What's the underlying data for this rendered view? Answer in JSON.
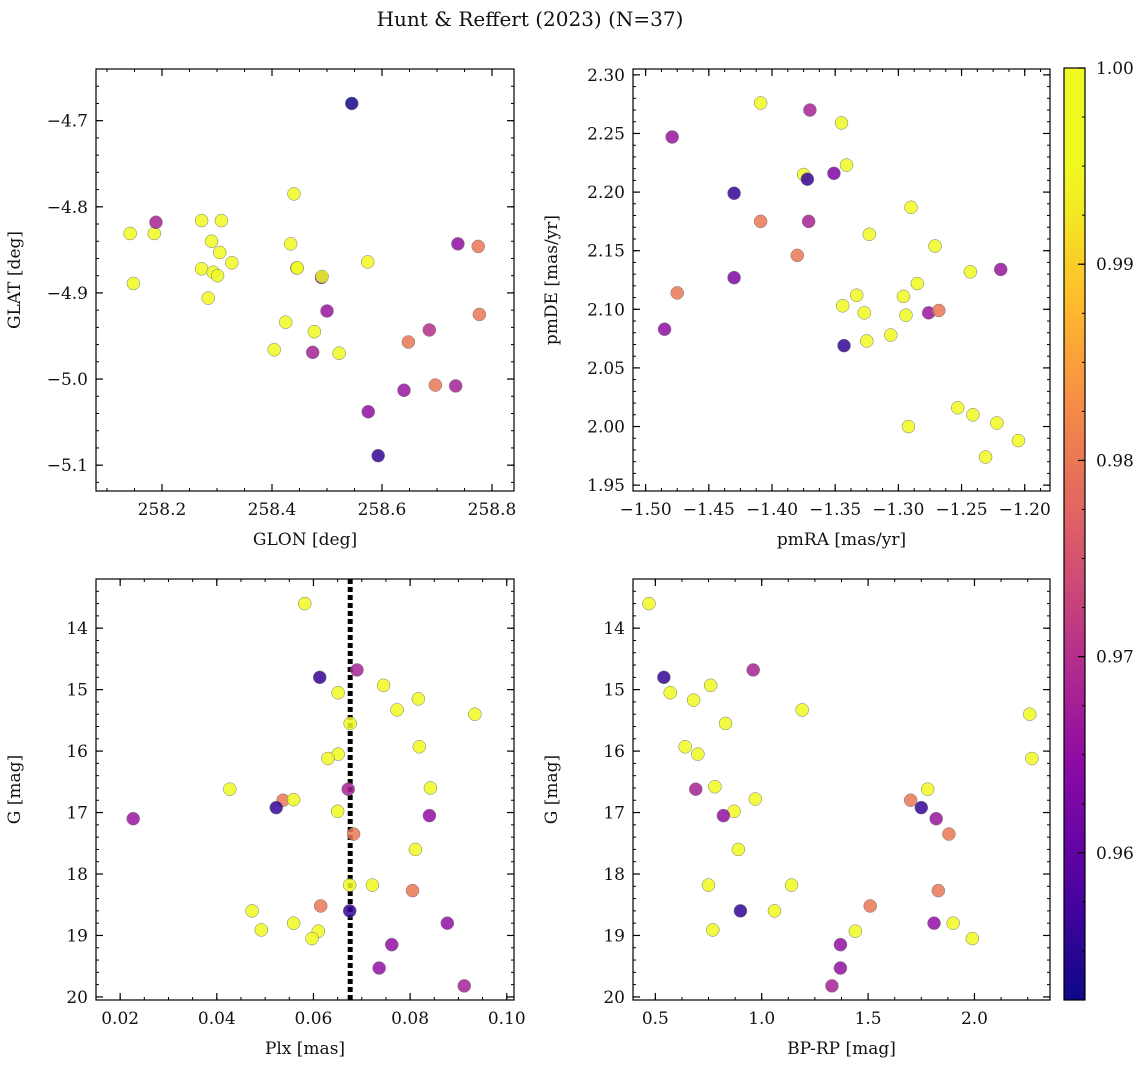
{
  "figure": {
    "title": "Hunt & Reffert (2023) (N=37)"
  },
  "colorbar": {
    "colormap": "plasma",
    "range": [
      0.9525,
      1.0
    ],
    "ticks": [
      0.96,
      0.97,
      0.98,
      0.99,
      1.0
    ],
    "tick_labels": [
      "0.96",
      "0.97",
      "0.98",
      "0.99",
      "1.00"
    ]
  },
  "chart_data": [
    {
      "type": "scatter",
      "title": "",
      "xlabel": "GLON [deg]",
      "ylabel": "GLAT [deg]",
      "xlim": [
        258.08,
        258.84
      ],
      "ylim": [
        -5.13,
        -4.64
      ],
      "xticks": [
        258.2,
        258.4,
        258.6,
        258.8
      ],
      "xtick_labels": [
        "258.2",
        "258.4",
        "258.6",
        "258.8"
      ],
      "yticks": [
        -4.7,
        -4.8,
        -4.9,
        -5.0,
        -5.1
      ],
      "ytick_labels": [
        "−4.7",
        "−4.8",
        "−4.9",
        "−5.0",
        "−5.1"
      ],
      "invert_y": false,
      "points": [
        [
          258.545,
          -4.68,
          0.953
        ],
        [
          258.142,
          -4.831,
          1.0
        ],
        [
          258.186,
          -4.831,
          1.0
        ],
        [
          258.189,
          -4.818,
          0.968
        ],
        [
          258.148,
          -4.889,
          1.0
        ],
        [
          258.272,
          -4.816,
          1.0
        ],
        [
          258.308,
          -4.816,
          1.0
        ],
        [
          258.29,
          -4.84,
          1.0
        ],
        [
          258.305,
          -4.853,
          1.0
        ],
        [
          258.327,
          -4.865,
          1.0
        ],
        [
          258.272,
          -4.872,
          1.0
        ],
        [
          258.293,
          -4.876,
          1.0
        ],
        [
          258.301,
          -4.88,
          1.0
        ],
        [
          258.284,
          -4.906,
          1.0
        ],
        [
          258.44,
          -4.785,
          1.0
        ],
        [
          258.434,
          -4.843,
          1.0
        ],
        [
          258.445,
          -4.871,
          1.0
        ],
        [
          258.446,
          -4.871,
          1.0
        ],
        [
          258.49,
          -4.882,
          0.96
        ],
        [
          258.491,
          -4.881,
          1.0
        ],
        [
          258.574,
          -4.864,
          1.0
        ],
        [
          258.425,
          -4.934,
          1.0
        ],
        [
          258.404,
          -4.966,
          1.0
        ],
        [
          258.477,
          -4.945,
          1.0
        ],
        [
          258.474,
          -4.969,
          0.968
        ],
        [
          258.5,
          -4.921,
          0.966
        ],
        [
          258.522,
          -4.97,
          1.0
        ],
        [
          258.648,
          -4.957,
          0.98
        ],
        [
          258.686,
          -4.943,
          0.97
        ],
        [
          258.697,
          -5.007,
          0.98
        ],
        [
          258.734,
          -5.008,
          0.968
        ],
        [
          258.738,
          -4.843,
          0.965
        ],
        [
          258.775,
          -4.846,
          0.98
        ],
        [
          258.777,
          -4.925,
          0.98
        ],
        [
          258.64,
          -5.013,
          0.966
        ],
        [
          258.575,
          -5.038,
          0.965
        ],
        [
          258.593,
          -5.089,
          0.956
        ]
      ]
    },
    {
      "type": "scatter",
      "title": "",
      "xlabel": "pmRA [mas/yr]",
      "ylabel": "pmDE [mas/yr]",
      "xlim": [
        -1.51,
        -1.18
      ],
      "ylim": [
        1.945,
        2.305
      ],
      "xticks": [
        -1.5,
        -1.45,
        -1.4,
        -1.35,
        -1.3,
        -1.25,
        -1.2
      ],
      "xtick_labels": [
        "−1.50",
        "−1.45",
        "−1.40",
        "−1.35",
        "−1.30",
        "−1.25",
        "−1.20"
      ],
      "yticks": [
        1.95,
        2.0,
        2.05,
        2.1,
        2.15,
        2.2,
        2.25,
        2.3
      ],
      "ytick_labels": [
        "1.95",
        "2.00",
        "2.05",
        "2.10",
        "2.15",
        "2.20",
        "2.25",
        "2.30"
      ],
      "invert_y": false,
      "points": [
        [
          -1.479,
          2.247,
          0.966
        ],
        [
          -1.485,
          2.083,
          0.965
        ],
        [
          -1.475,
          2.114,
          0.98
        ],
        [
          -1.43,
          2.199,
          0.956
        ],
        [
          -1.43,
          2.127,
          0.963
        ],
        [
          -1.409,
          2.276,
          1.0
        ],
        [
          -1.409,
          2.175,
          0.98
        ],
        [
          -1.37,
          2.27,
          0.968
        ],
        [
          -1.345,
          2.259,
          0.995
        ],
        [
          -1.375,
          2.215,
          1.0
        ],
        [
          -1.372,
          2.211,
          0.956
        ],
        [
          -1.351,
          2.216,
          0.963
        ],
        [
          -1.341,
          2.223,
          1.0
        ],
        [
          -1.371,
          2.175,
          0.968
        ],
        [
          -1.38,
          2.146,
          0.98
        ],
        [
          -1.323,
          2.164,
          1.0
        ],
        [
          -1.29,
          2.187,
          1.0
        ],
        [
          -1.271,
          2.154,
          1.0
        ],
        [
          -1.243,
          2.132,
          1.0
        ],
        [
          -1.219,
          2.134,
          0.966
        ],
        [
          -1.344,
          2.103,
          1.0
        ],
        [
          -1.333,
          2.112,
          1.0
        ],
        [
          -1.327,
          2.097,
          1.0
        ],
        [
          -1.296,
          2.111,
          1.0
        ],
        [
          -1.285,
          2.122,
          1.0
        ],
        [
          -1.294,
          2.095,
          1.0
        ],
        [
          -1.276,
          2.097,
          0.966
        ],
        [
          -1.268,
          2.099,
          0.98
        ],
        [
          -1.325,
          2.073,
          1.0
        ],
        [
          -1.306,
          2.078,
          1.0
        ],
        [
          -1.343,
          2.069,
          0.956
        ],
        [
          -1.292,
          2.0,
          1.0
        ],
        [
          -1.253,
          2.016,
          1.0
        ],
        [
          -1.241,
          2.01,
          1.0
        ],
        [
          -1.222,
          2.003,
          1.0
        ],
        [
          -1.231,
          1.974,
          1.0
        ],
        [
          -1.205,
          1.988,
          1.0
        ]
      ]
    },
    {
      "type": "scatter",
      "title": "",
      "xlabel": "Plx [mas]",
      "ylabel": "G [mag]",
      "xlim": [
        0.015,
        0.1015
      ],
      "ylim": [
        20.05,
        13.2
      ],
      "xticks": [
        0.02,
        0.04,
        0.06,
        0.08,
        0.1
      ],
      "xtick_labels": [
        "0.02",
        "0.04",
        "0.06",
        "0.08",
        "0.10"
      ],
      "yticks": [
        14,
        15,
        16,
        17,
        18,
        19,
        20
      ],
      "ytick_labels": [
        "14",
        "15",
        "16",
        "17",
        "18",
        "19",
        "20"
      ],
      "invert_y": true,
      "vline": {
        "x": 0.0676,
        "style": "dotted",
        "color": "#000000"
      },
      "points": [
        [
          0.0582,
          13.6,
          1.0
        ],
        [
          0.0613,
          14.8,
          0.956
        ],
        [
          0.069,
          14.68,
          0.968
        ],
        [
          0.0651,
          15.05,
          1.0
        ],
        [
          0.0745,
          14.93,
          1.0
        ],
        [
          0.0817,
          15.15,
          1.0
        ],
        [
          0.0934,
          15.4,
          1.0
        ],
        [
          0.0773,
          15.33,
          1.0
        ],
        [
          0.0676,
          15.55,
          1.0
        ],
        [
          0.0819,
          15.93,
          1.0
        ],
        [
          0.0651,
          16.05,
          0.995
        ],
        [
          0.063,
          16.12,
          1.0
        ],
        [
          0.0427,
          16.62,
          1.0
        ],
        [
          0.0842,
          16.6,
          1.0
        ],
        [
          0.0672,
          16.62,
          0.968
        ],
        [
          0.0537,
          16.8,
          0.98
        ],
        [
          0.0559,
          16.79,
          1.0
        ],
        [
          0.0523,
          16.92,
          0.956
        ],
        [
          0.065,
          16.98,
          1.0
        ],
        [
          0.084,
          17.05,
          0.965
        ],
        [
          0.0227,
          17.1,
          0.966
        ],
        [
          0.0683,
          17.35,
          0.98
        ],
        [
          0.0811,
          17.6,
          1.0
        ],
        [
          0.0675,
          18.18,
          1.0
        ],
        [
          0.0722,
          18.18,
          1.0
        ],
        [
          0.0805,
          18.27,
          0.98
        ],
        [
          0.0615,
          18.52,
          0.98
        ],
        [
          0.0473,
          18.6,
          1.0
        ],
        [
          0.0675,
          18.6,
          0.956
        ],
        [
          0.0559,
          18.8,
          1.0
        ],
        [
          0.0877,
          18.8,
          0.965
        ],
        [
          0.0492,
          18.91,
          1.0
        ],
        [
          0.061,
          18.93,
          1.0
        ],
        [
          0.0597,
          19.05,
          1.0
        ],
        [
          0.0762,
          19.15,
          0.965
        ],
        [
          0.0736,
          19.53,
          0.965
        ],
        [
          0.0912,
          19.82,
          0.968
        ]
      ]
    },
    {
      "type": "scatter",
      "title": "",
      "xlabel": "BP-RP [mag]",
      "ylabel": "G [mag]",
      "xlim": [
        0.395,
        2.355
      ],
      "ylim": [
        20.05,
        13.2
      ],
      "xticks": [
        0.5,
        1.0,
        1.5,
        2.0
      ],
      "xtick_labels": [
        "0.5",
        "1.0",
        "1.5",
        "2.0"
      ],
      "yticks": [
        14,
        15,
        16,
        17,
        18,
        19,
        20
      ],
      "ytick_labels": [
        "14",
        "15",
        "16",
        "17",
        "18",
        "19",
        "20"
      ],
      "invert_y": true,
      "points": [
        [
          0.47,
          13.6,
          1.0
        ],
        [
          0.54,
          14.8,
          0.956
        ],
        [
          0.57,
          15.05,
          1.0
        ],
        [
          0.68,
          15.17,
          1.0
        ],
        [
          0.76,
          14.93,
          1.0
        ],
        [
          0.96,
          14.68,
          0.968
        ],
        [
          0.83,
          15.55,
          1.0
        ],
        [
          1.19,
          15.33,
          1.0
        ],
        [
          2.26,
          15.4,
          1.0
        ],
        [
          0.64,
          15.93,
          1.0
        ],
        [
          0.7,
          16.05,
          0.995
        ],
        [
          2.27,
          16.12,
          1.0
        ],
        [
          0.69,
          16.62,
          0.968
        ],
        [
          0.78,
          16.58,
          1.0
        ],
        [
          1.78,
          16.62,
          1.0
        ],
        [
          0.97,
          16.78,
          1.0
        ],
        [
          1.7,
          16.8,
          0.98
        ],
        [
          1.75,
          16.92,
          0.956
        ],
        [
          0.87,
          16.98,
          1.0
        ],
        [
          0.82,
          17.05,
          0.965
        ],
        [
          1.82,
          17.1,
          0.966
        ],
        [
          1.88,
          17.35,
          0.98
        ],
        [
          0.89,
          17.6,
          1.0
        ],
        [
          0.75,
          18.18,
          1.0
        ],
        [
          1.14,
          18.18,
          1.0
        ],
        [
          1.83,
          18.27,
          0.98
        ],
        [
          1.51,
          18.52,
          0.98
        ],
        [
          0.9,
          18.6,
          0.956
        ],
        [
          1.06,
          18.6,
          1.0
        ],
        [
          1.81,
          18.8,
          0.965
        ],
        [
          1.9,
          18.8,
          1.0
        ],
        [
          0.77,
          18.91,
          1.0
        ],
        [
          1.44,
          18.93,
          1.0
        ],
        [
          1.99,
          19.05,
          1.0
        ],
        [
          1.37,
          19.15,
          0.965
        ],
        [
          1.37,
          19.53,
          0.965
        ],
        [
          1.33,
          19.82,
          0.968
        ]
      ]
    }
  ]
}
